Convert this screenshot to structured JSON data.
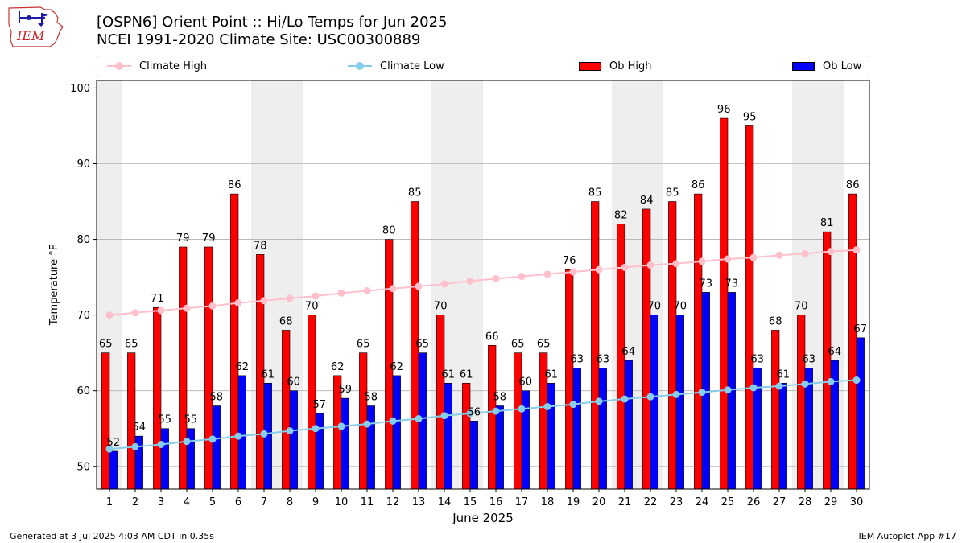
{
  "header": {
    "title_line1": "[OSPN6] Orient Point :: Hi/Lo Temps for Jun 2025",
    "title_line2": "NCEI 1991-2020 Climate Site: USC00300889",
    "logo_text": "IEM"
  },
  "footer": {
    "left": "Generated at 3 Jul 2025 4:03 AM CDT in 0.35s",
    "right": "IEM Autoplot App #17"
  },
  "legend": {
    "position": "top",
    "items": [
      "Climate High",
      "Climate Low",
      "Ob High",
      "Ob Low"
    ]
  },
  "colors": {
    "ob_high": "#ff0000",
    "ob_low": "#0000ff",
    "climate_high": "#ffc0cb",
    "climate_low": "#87ceeb",
    "weekend_shade": "#eeeeee",
    "grid": "#b0b0b0"
  },
  "chart_data": {
    "type": "bar",
    "xlabel": "June 2025",
    "ylabel": "Temperature °F",
    "ylim": [
      47,
      101
    ],
    "yticks": [
      50,
      60,
      70,
      80,
      90,
      100
    ],
    "grid": "y",
    "x": [
      1,
      2,
      3,
      4,
      5,
      6,
      7,
      8,
      9,
      10,
      11,
      12,
      13,
      14,
      15,
      16,
      17,
      18,
      19,
      20,
      21,
      22,
      23,
      24,
      25,
      26,
      27,
      28,
      29,
      30
    ],
    "shaded_days": [
      1,
      7,
      8,
      14,
      15,
      21,
      22,
      28,
      29
    ],
    "series": [
      {
        "name": "Ob High",
        "type": "bar",
        "values": [
          65,
          65,
          71,
          79,
          79,
          86,
          78,
          68,
          70,
          62,
          65,
          80,
          85,
          70,
          61,
          66,
          65,
          65,
          76,
          85,
          82,
          84,
          85,
          86,
          96,
          95,
          68,
          70,
          81,
          86
        ]
      },
      {
        "name": "Ob Low",
        "type": "bar",
        "values": [
          52,
          54,
          55,
          55,
          58,
          62,
          61,
          60,
          57,
          59,
          58,
          62,
          65,
          61,
          56,
          58,
          60,
          61,
          63,
          63,
          64,
          70,
          70,
          73,
          73,
          63,
          61,
          63,
          64,
          67
        ]
      },
      {
        "name": "Climate High",
        "type": "line",
        "values": [
          70.0,
          70.3,
          70.6,
          70.9,
          71.2,
          71.6,
          71.9,
          72.2,
          72.5,
          72.9,
          73.2,
          73.5,
          73.8,
          74.1,
          74.5,
          74.8,
          75.1,
          75.4,
          75.7,
          76.0,
          76.3,
          76.6,
          76.8,
          77.1,
          77.4,
          77.6,
          77.9,
          78.1,
          78.4,
          78.6
        ]
      },
      {
        "name": "Climate Low",
        "type": "line",
        "values": [
          52.3,
          52.6,
          52.9,
          53.3,
          53.6,
          54.0,
          54.3,
          54.7,
          55.0,
          55.3,
          55.6,
          56.0,
          56.3,
          56.7,
          57.0,
          57.3,
          57.6,
          57.9,
          58.2,
          58.6,
          58.9,
          59.2,
          59.5,
          59.8,
          60.1,
          60.4,
          60.6,
          60.9,
          61.2,
          61.4
        ]
      }
    ]
  }
}
